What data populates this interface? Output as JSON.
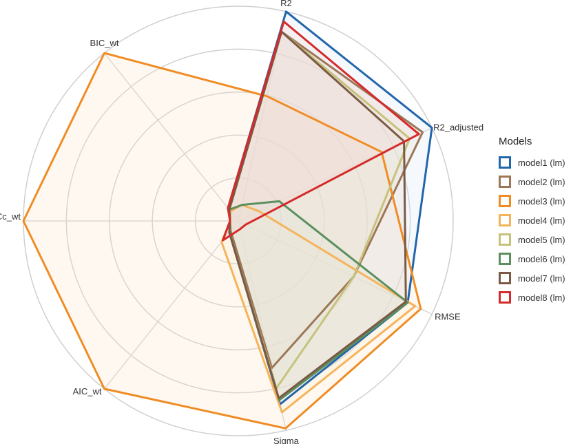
{
  "chart_data": {
    "type": "radar",
    "axes": [
      "R2",
      "R2_adjusted",
      "RMSE",
      "Sigma",
      "AIC_wt",
      "AICc_wt",
      "BIC_wt"
    ],
    "rlim": [
      0,
      1
    ],
    "grid": true,
    "legend_title": "Models",
    "legend_position": "right",
    "series": [
      {
        "name": "model1 (lm)",
        "color": "#2166AC",
        "fill": "#d6e4f2",
        "values": [
          1.0,
          1.0,
          0.87,
          0.87,
          0.03,
          0.0,
          0.04
        ]
      },
      {
        "name": "model2 (lm)",
        "color": "#9C7757",
        "fill": "#e6dccf",
        "values": [
          0.9,
          0.95,
          0.58,
          0.69,
          0.02,
          0.0,
          0.03
        ]
      },
      {
        "name": "model3 (lm)",
        "color": "#F08C24",
        "fill": "#fbe3c6",
        "values": [
          0.58,
          0.73,
          0.94,
          0.99,
          1.0,
          1.0,
          1.0
        ]
      },
      {
        "name": "model4 (lm)",
        "color": "#F5B35C",
        "fill": "#fdebd0",
        "values": [
          0.04,
          0.07,
          0.91,
          0.91,
          0.09,
          0.0,
          0.02
        ]
      },
      {
        "name": "model5 (lm)",
        "color": "#C6C27B",
        "fill": "#f0efd8",
        "values": [
          0.9,
          0.88,
          0.58,
          0.79,
          0.03,
          0.0,
          0.04
        ]
      },
      {
        "name": "model6 (lm)",
        "color": "#5A8F5E",
        "fill": "#d8e6d8",
        "values": [
          0.04,
          0.18,
          0.87,
          0.85,
          0.03,
          0.0,
          0.03
        ]
      },
      {
        "name": "model7 (lm)",
        "color": "#7A5A44",
        "fill": "#e3d9d0",
        "values": [
          0.9,
          0.85,
          0.86,
          0.84,
          0.03,
          0.0,
          0.03
        ]
      },
      {
        "name": "model8 (lm)",
        "color": "#D42A2A",
        "fill": "#f6d4d4",
        "values": [
          0.95,
          0.93,
          0.0,
          0.0,
          0.08,
          0.0,
          0.04
        ]
      }
    ]
  }
}
